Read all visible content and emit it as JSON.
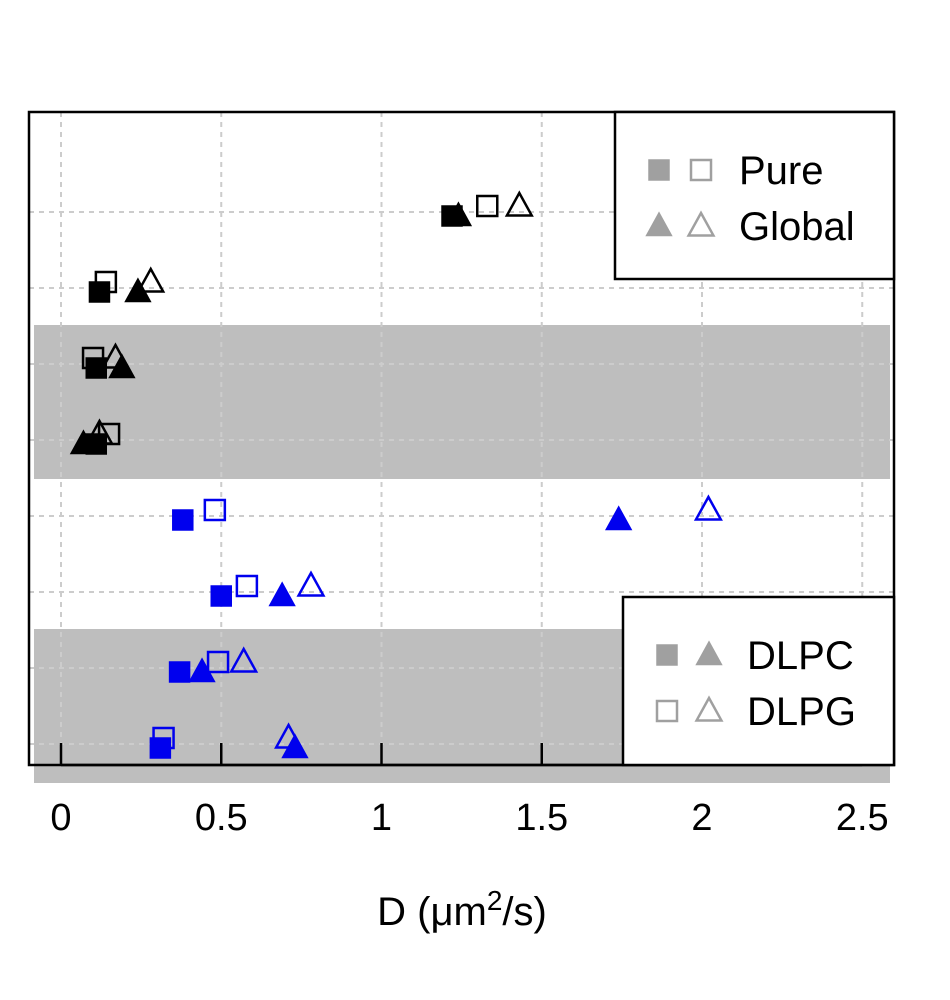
{
  "chart_data": {
    "type": "scatter",
    "title": "",
    "xlabel_main": "D (",
    "xlabel_mu": "μ",
    "xlabel_unit": "m",
    "xlabel_sup": "2",
    "xlabel_tail": "/s)",
    "ylabel": "",
    "xlim": [
      -0.1,
      2.6
    ],
    "x_ticks": [
      0,
      0.5,
      1,
      1.5,
      2,
      2.5
    ],
    "x_tick_labels": [
      "0",
      "0.5",
      "1",
      "1.5",
      "2",
      "2.5"
    ],
    "rows": 8,
    "shaded_rows": [
      3,
      4,
      7,
      8
    ],
    "grid": true,
    "colors": {
      "black_group": "#000000",
      "blue_group": "#0000ee",
      "shade": "#bebebe",
      "legend_marker": "#a0a0a0",
      "grid": "#cccccc"
    },
    "points": [
      {
        "row": 1,
        "x": 1.22,
        "marker": "square-filled",
        "color": "black"
      },
      {
        "row": 1,
        "x": 1.24,
        "marker": "triangle-filled",
        "color": "black"
      },
      {
        "row": 1,
        "x": 1.33,
        "marker": "square-open",
        "color": "black"
      },
      {
        "row": 1,
        "x": 1.43,
        "marker": "triangle-open",
        "color": "black"
      },
      {
        "row": 2,
        "x": 0.12,
        "marker": "square-filled",
        "color": "black"
      },
      {
        "row": 2,
        "x": 0.14,
        "marker": "square-open",
        "color": "black"
      },
      {
        "row": 2,
        "x": 0.24,
        "marker": "triangle-filled",
        "color": "black"
      },
      {
        "row": 2,
        "x": 0.28,
        "marker": "triangle-open",
        "color": "black"
      },
      {
        "row": 3,
        "x": 0.1,
        "marker": "square-open",
        "color": "black"
      },
      {
        "row": 3,
        "x": 0.11,
        "marker": "square-filled",
        "color": "black"
      },
      {
        "row": 3,
        "x": 0.17,
        "marker": "triangle-open",
        "color": "black"
      },
      {
        "row": 3,
        "x": 0.19,
        "marker": "triangle-filled",
        "color": "black"
      },
      {
        "row": 4,
        "x": 0.07,
        "marker": "triangle-filled",
        "color": "black"
      },
      {
        "row": 4,
        "x": 0.11,
        "marker": "square-filled",
        "color": "black"
      },
      {
        "row": 4,
        "x": 0.12,
        "marker": "triangle-open",
        "color": "black"
      },
      {
        "row": 4,
        "x": 0.15,
        "marker": "square-open",
        "color": "black"
      },
      {
        "row": 5,
        "x": 0.38,
        "marker": "square-filled",
        "color": "blue"
      },
      {
        "row": 5,
        "x": 0.48,
        "marker": "square-open",
        "color": "blue"
      },
      {
        "row": 5,
        "x": 1.74,
        "marker": "triangle-filled",
        "color": "blue"
      },
      {
        "row": 5,
        "x": 2.02,
        "marker": "triangle-open",
        "color": "blue"
      },
      {
        "row": 6,
        "x": 0.5,
        "marker": "square-filled",
        "color": "blue"
      },
      {
        "row": 6,
        "x": 0.58,
        "marker": "square-open",
        "color": "blue"
      },
      {
        "row": 6,
        "x": 0.69,
        "marker": "triangle-filled",
        "color": "blue"
      },
      {
        "row": 6,
        "x": 0.78,
        "marker": "triangle-open",
        "color": "blue"
      },
      {
        "row": 7,
        "x": 0.37,
        "marker": "square-filled",
        "color": "blue"
      },
      {
        "row": 7,
        "x": 0.44,
        "marker": "triangle-filled",
        "color": "blue"
      },
      {
        "row": 7,
        "x": 0.49,
        "marker": "square-open",
        "color": "blue"
      },
      {
        "row": 7,
        "x": 0.57,
        "marker": "triangle-open",
        "color": "blue"
      },
      {
        "row": 8,
        "x": 0.31,
        "marker": "square-filled",
        "color": "blue"
      },
      {
        "row": 8,
        "x": 0.32,
        "marker": "square-open",
        "color": "blue"
      },
      {
        "row": 8,
        "x": 0.71,
        "marker": "triangle-open",
        "color": "blue"
      },
      {
        "row": 8,
        "x": 0.73,
        "marker": "triangle-filled",
        "color": "blue"
      }
    ],
    "legends": [
      {
        "position": "top-right",
        "entries": [
          {
            "label": "Pure",
            "markers": [
              "square-filled",
              "square-open"
            ]
          },
          {
            "label": "Global",
            "markers": [
              "triangle-filled",
              "triangle-open"
            ]
          }
        ]
      },
      {
        "position": "bottom-right",
        "entries": [
          {
            "label": "DLPC",
            "markers": [
              "square-filled",
              "triangle-filled"
            ]
          },
          {
            "label": "DLPG",
            "markers": [
              "square-open",
              "triangle-open"
            ]
          }
        ]
      }
    ]
  }
}
